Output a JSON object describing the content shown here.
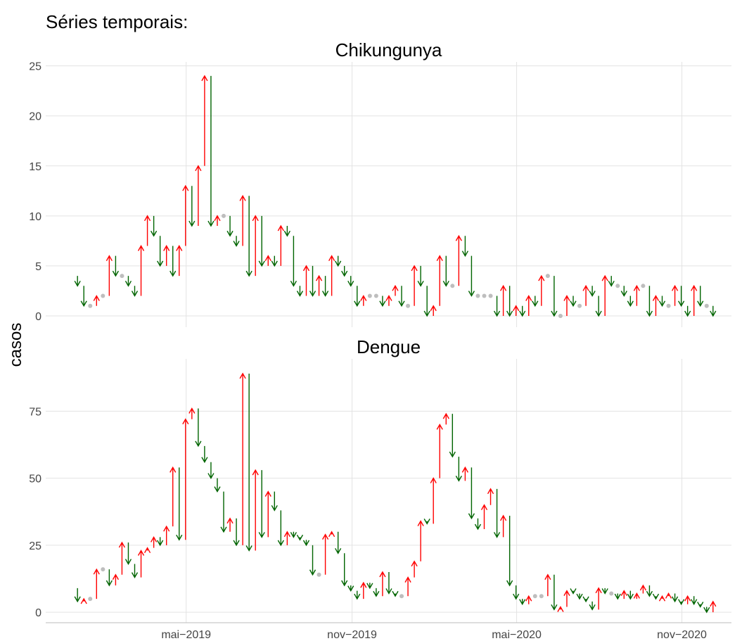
{
  "heading": "Séries temporais:",
  "y_label": "casos",
  "colors": {
    "up": "#ff0000",
    "down": "#006400",
    "same": "#bebebe"
  },
  "chart_data": [
    {
      "type": "arrow",
      "title": "Chikungunya",
      "x": [
        0,
        1,
        2,
        3,
        4,
        5,
        6,
        7,
        8,
        9,
        10,
        11,
        12,
        13,
        14,
        15,
        16,
        17,
        18,
        19,
        20,
        21,
        22,
        23,
        24,
        25,
        26,
        27,
        28,
        29,
        30,
        31,
        32,
        33,
        34,
        35,
        36,
        37,
        38,
        39,
        40,
        41,
        42,
        43,
        44,
        45,
        46,
        47,
        48,
        49,
        50,
        51,
        52,
        53,
        54,
        55,
        56,
        57,
        58,
        59,
        60,
        61,
        62,
        63,
        64,
        65,
        66,
        67,
        68,
        69,
        70,
        71,
        72,
        73,
        74,
        75,
        76,
        77,
        78,
        79,
        80,
        81,
        82,
        83,
        84,
        85,
        86,
        87,
        88,
        89,
        90,
        91,
        92,
        93,
        94,
        95,
        96,
        97,
        98,
        99,
        100,
        101
      ],
      "values": [
        4,
        3,
        1,
        1,
        2,
        2,
        6,
        4,
        4,
        3,
        2,
        7,
        10,
        8,
        5,
        7,
        4,
        7,
        13,
        9,
        15,
        24,
        9,
        10,
        10,
        8,
        7,
        12,
        4,
        10,
        5,
        6,
        5,
        9,
        8,
        3,
        2,
        5,
        2,
        4,
        2,
        6,
        5,
        4,
        3,
        1,
        2,
        2,
        2,
        1,
        2,
        3,
        1,
        1,
        5,
        3,
        0,
        1,
        6,
        3,
        3,
        8,
        6,
        2,
        2,
        2,
        2,
        0,
        3,
        0,
        1,
        0,
        2,
        1,
        4,
        4,
        0,
        0,
        2,
        1,
        1,
        3,
        2,
        0,
        4,
        3,
        3,
        2,
        1,
        3,
        3,
        0,
        2,
        1,
        1,
        3,
        1,
        0,
        3,
        1,
        1,
        0
      ],
      "xlim": [
        -4,
        103.9
      ],
      "ylim": [
        -1.13,
        25.4
      ],
      "yticks": [
        0,
        5,
        10,
        15,
        20,
        25
      ],
      "grid": true
    },
    {
      "type": "arrow",
      "title": "Dengue",
      "x": [
        0,
        1,
        2,
        3,
        4,
        5,
        6,
        7,
        8,
        9,
        10,
        11,
        12,
        13,
        14,
        15,
        16,
        17,
        18,
        19,
        20,
        21,
        22,
        23,
        24,
        25,
        26,
        27,
        28,
        29,
        30,
        31,
        32,
        33,
        34,
        35,
        36,
        37,
        38,
        39,
        40,
        41,
        42,
        43,
        44,
        45,
        46,
        47,
        48,
        49,
        50,
        51,
        52,
        53,
        54,
        55,
        56,
        57,
        58,
        59,
        60,
        61,
        62,
        63,
        64,
        65,
        66,
        67,
        68,
        69,
        70,
        71,
        72,
        73,
        74,
        75,
        76,
        77,
        78,
        79,
        80,
        81,
        82,
        83,
        84,
        85,
        86,
        87,
        88,
        89,
        90,
        91,
        92,
        93,
        94,
        95,
        96,
        97,
        98,
        99,
        100,
        101
      ],
      "values": [
        9,
        4,
        5,
        5,
        16,
        16,
        10,
        14,
        26,
        18,
        13,
        23,
        24,
        28,
        25,
        32,
        54,
        27,
        72,
        76,
        62,
        56,
        50,
        45,
        30,
        35,
        25,
        89,
        23,
        53,
        28,
        45,
        38,
        25,
        30,
        28,
        27,
        25,
        14,
        14,
        29,
        30,
        22,
        10,
        8,
        5,
        11,
        9,
        6,
        15,
        7,
        6,
        6,
        13,
        19,
        34,
        33,
        50,
        70,
        74,
        58,
        49,
        54,
        35,
        31,
        40,
        46,
        28,
        36,
        10,
        5,
        3,
        6,
        6,
        6,
        14,
        1,
        2,
        8,
        7,
        5,
        4,
        1,
        9,
        7,
        7,
        5,
        8,
        5,
        7,
        10,
        6,
        5,
        6,
        7,
        4,
        3,
        6,
        3,
        2,
        0,
        4
      ],
      "xlim": [
        -4,
        103.9
      ],
      "ylim": [
        -3.9,
        94.5
      ],
      "yticks": [
        0,
        25,
        50,
        75
      ],
      "xticks": [
        {
          "value": 18.1,
          "label": "mai−2019"
        },
        {
          "value": 44.2,
          "label": "nov−2019"
        },
        {
          "value": 70.1,
          "label": "mai−2020"
        },
        {
          "value": 96.1,
          "label": "nov−2020"
        }
      ],
      "grid": true
    }
  ]
}
